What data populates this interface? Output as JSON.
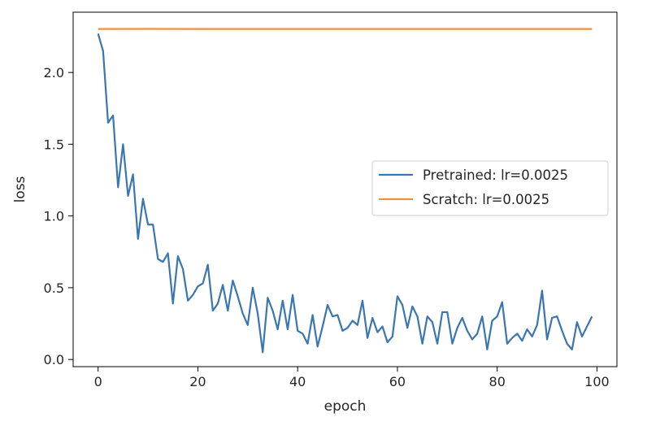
{
  "chart_data": {
    "type": "line",
    "xlabel": "epoch",
    "ylabel": "loss",
    "xlim": [
      -5,
      104
    ],
    "ylim": [
      -0.05,
      2.42
    ],
    "xticks": [
      0,
      20,
      40,
      60,
      80,
      100
    ],
    "yticks": [
      0.0,
      0.5,
      1.0,
      1.5,
      2.0
    ],
    "xtick_labels": [
      "0",
      "20",
      "40",
      "60",
      "80",
      "100"
    ],
    "ytick_labels": [
      "0.0",
      "0.5",
      "1.0",
      "1.5",
      "2.0"
    ],
    "grid": false,
    "legend_position": "center-right",
    "series": [
      {
        "name": "Pretrained: lr=0.0025",
        "color": "#3a76b0",
        "x": [
          0,
          1,
          2,
          3,
          4,
          5,
          6,
          7,
          8,
          9,
          10,
          11,
          12,
          13,
          14,
          15,
          16,
          17,
          18,
          19,
          20,
          21,
          22,
          23,
          24,
          25,
          26,
          27,
          28,
          29,
          30,
          31,
          32,
          33,
          34,
          35,
          36,
          37,
          38,
          39,
          40,
          41,
          42,
          43,
          44,
          45,
          46,
          47,
          48,
          49,
          50,
          51,
          52,
          53,
          54,
          55,
          56,
          57,
          58,
          59,
          60,
          61,
          62,
          63,
          64,
          65,
          66,
          67,
          68,
          69,
          70,
          71,
          72,
          73,
          74,
          75,
          76,
          77,
          78,
          79,
          80,
          81,
          82,
          83,
          84,
          85,
          86,
          87,
          88,
          89,
          90,
          91,
          92,
          93,
          94,
          95,
          96,
          97,
          98,
          99
        ],
        "y": [
          2.27,
          2.15,
          1.65,
          1.7,
          1.2,
          1.5,
          1.14,
          1.29,
          0.84,
          1.12,
          0.94,
          0.94,
          0.7,
          0.68,
          0.74,
          0.39,
          0.72,
          0.63,
          0.41,
          0.45,
          0.51,
          0.53,
          0.66,
          0.34,
          0.39,
          0.52,
          0.34,
          0.55,
          0.44,
          0.32,
          0.24,
          0.5,
          0.32,
          0.05,
          0.43,
          0.34,
          0.21,
          0.41,
          0.21,
          0.45,
          0.2,
          0.18,
          0.11,
          0.31,
          0.09,
          0.23,
          0.38,
          0.3,
          0.31,
          0.2,
          0.22,
          0.27,
          0.24,
          0.41,
          0.15,
          0.29,
          0.19,
          0.23,
          0.12,
          0.16,
          0.44,
          0.38,
          0.22,
          0.37,
          0.3,
          0.11,
          0.3,
          0.26,
          0.11,
          0.33,
          0.33,
          0.11,
          0.22,
          0.29,
          0.2,
          0.14,
          0.18,
          0.3,
          0.07,
          0.27,
          0.3,
          0.4,
          0.11,
          0.15,
          0.18,
          0.13,
          0.21,
          0.16,
          0.24,
          0.48,
          0.14,
          0.29,
          0.3,
          0.2,
          0.11,
          0.07,
          0.26,
          0.16,
          0.23,
          0.3
        ]
      },
      {
        "name": "Scratch: lr=0.0025",
        "color": "#f0923a",
        "x": [
          0,
          10,
          20,
          30,
          40,
          50,
          60,
          70,
          80,
          90,
          99
        ],
        "y": [
          2.303,
          2.304,
          2.303,
          2.303,
          2.303,
          2.303,
          2.303,
          2.303,
          2.303,
          2.303,
          2.303
        ]
      }
    ]
  }
}
